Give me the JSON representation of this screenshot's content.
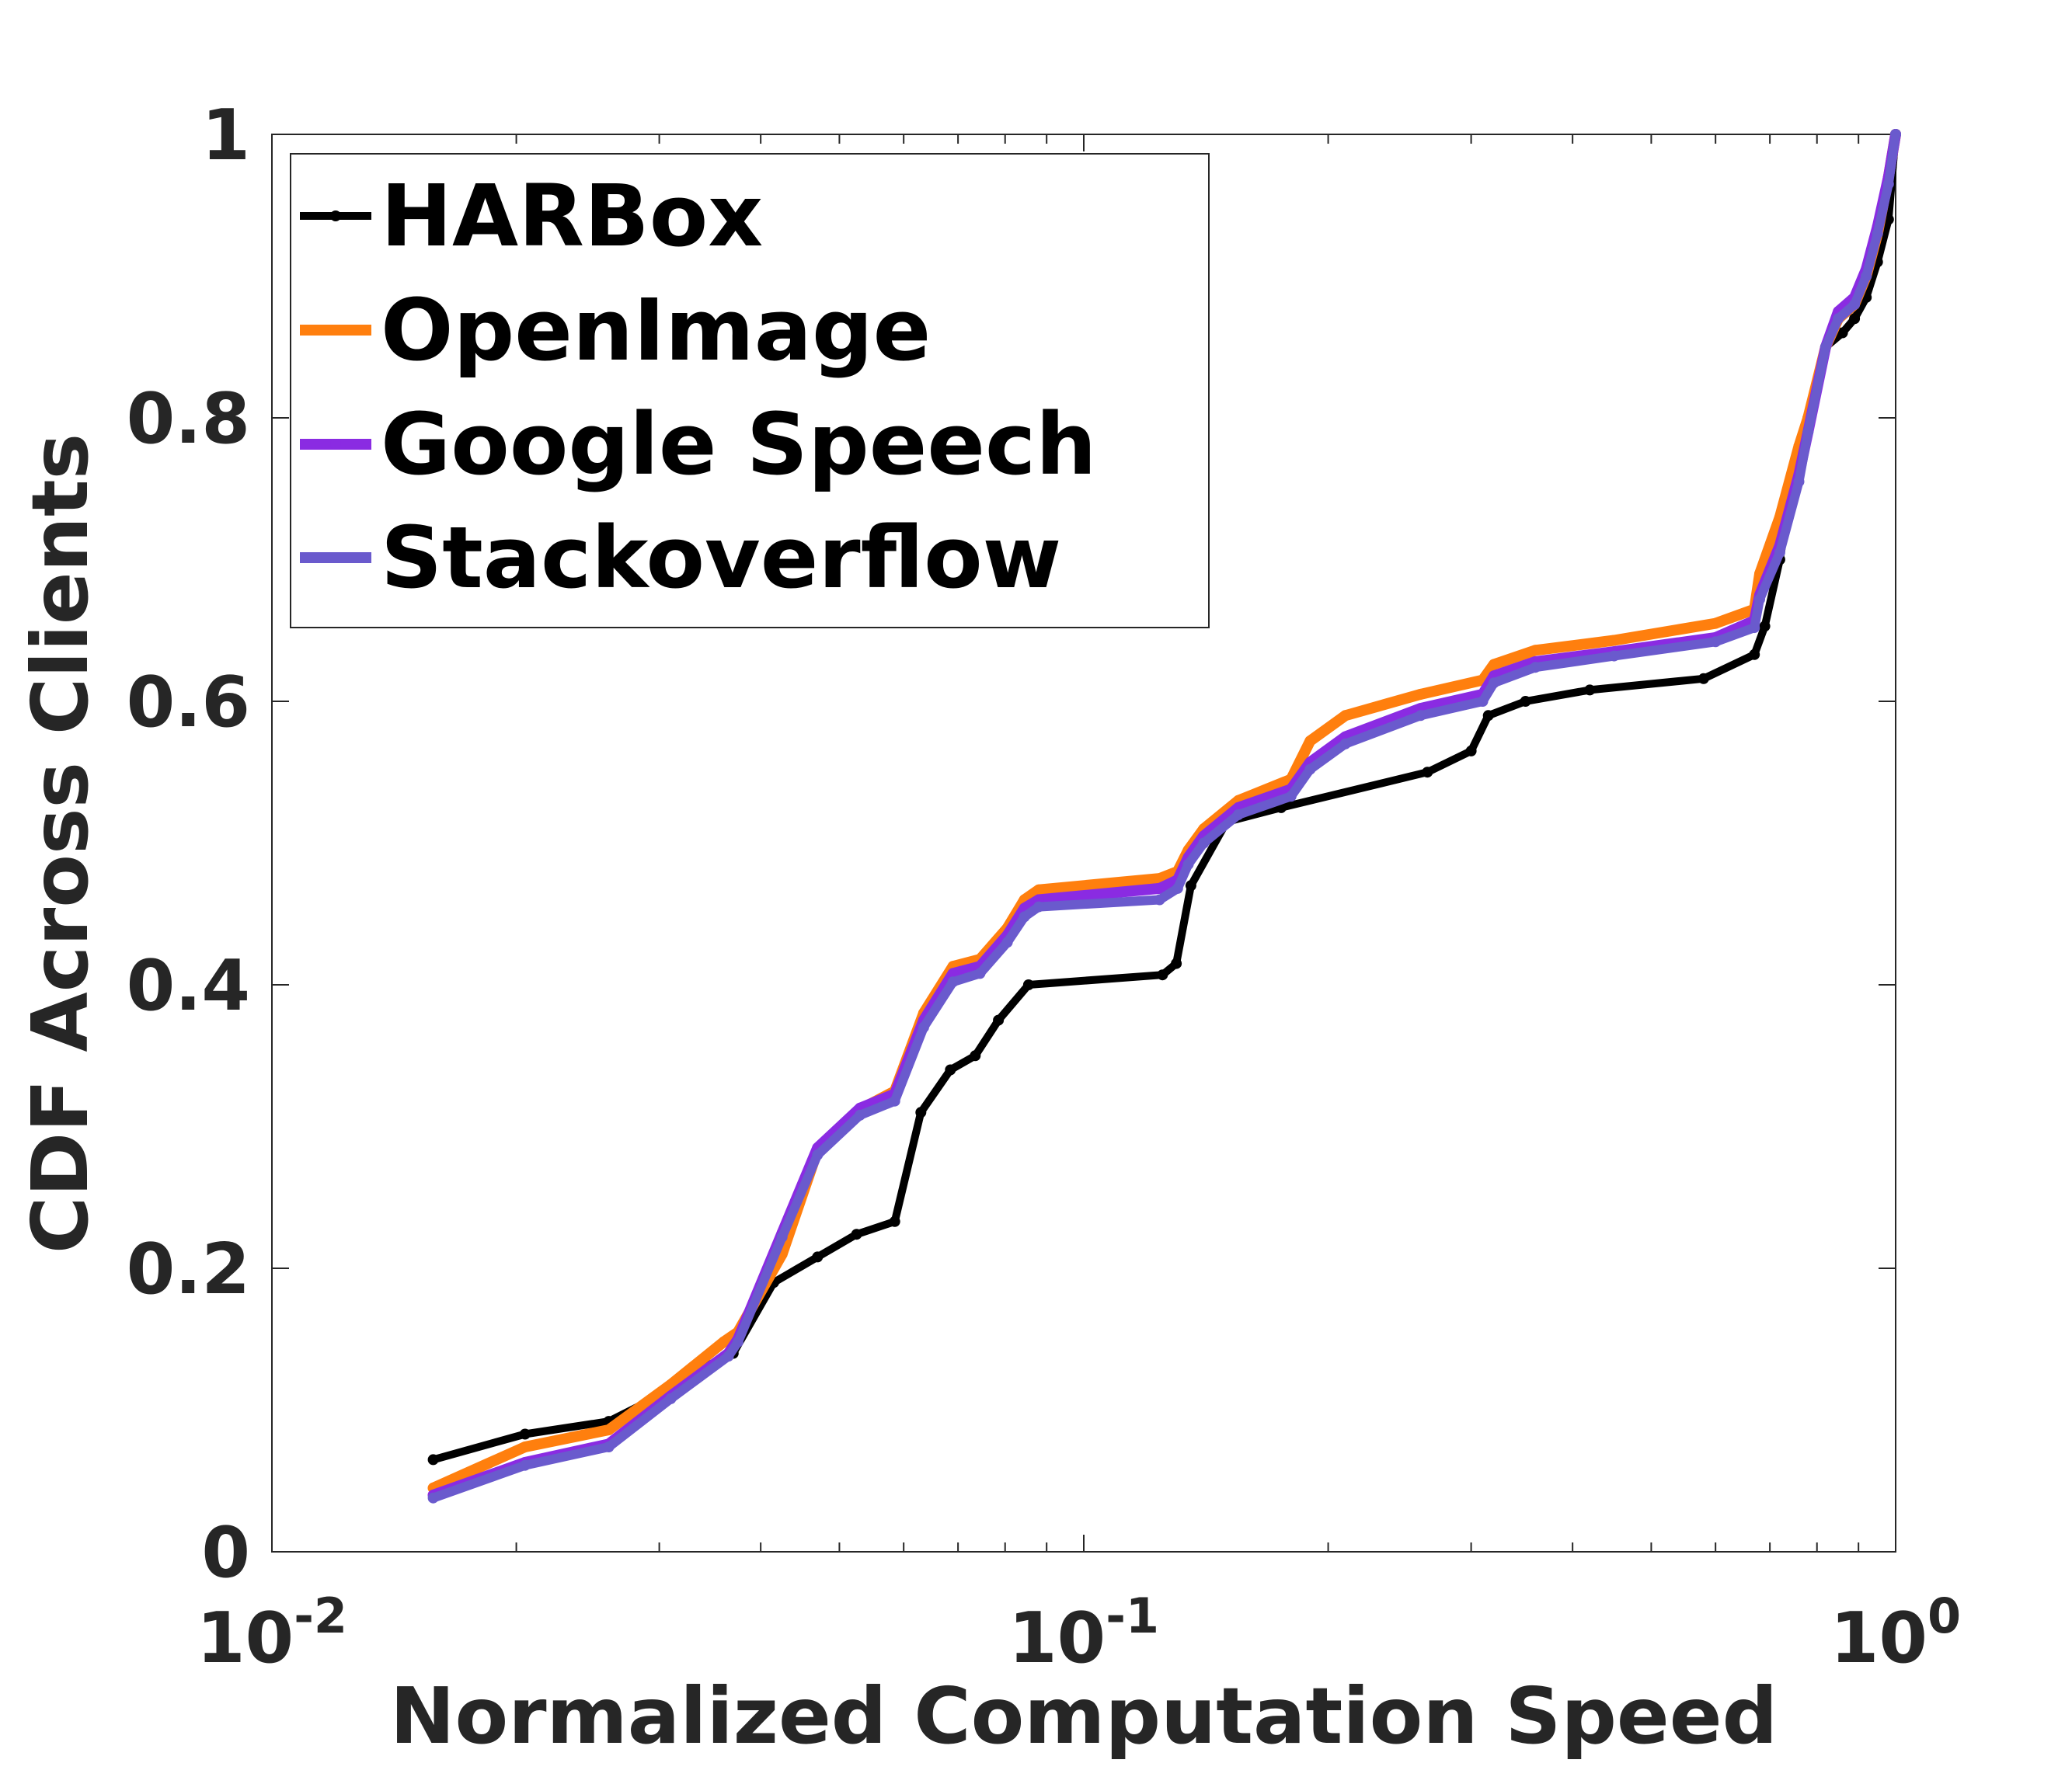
{
  "chart_data": {
    "type": "line",
    "title": "",
    "xlabel": "Normalized Computation Speed",
    "ylabel": "CDF Across Clients",
    "xscale": "log",
    "xlim": [
      0.01,
      1
    ],
    "ylim": [
      0,
      1
    ],
    "x_ticks": [
      {
        "value": 0.01,
        "base": "10",
        "exp": "-2"
      },
      {
        "value": 0.1,
        "base": "10",
        "exp": "-1"
      },
      {
        "value": 1,
        "base": "10",
        "exp": "0"
      }
    ],
    "y_ticks": [
      {
        "value": 0,
        "label": "0"
      },
      {
        "value": 0.2,
        "label": "0.2"
      },
      {
        "value": 0.4,
        "label": "0.4"
      },
      {
        "value": 0.6,
        "label": "0.6"
      },
      {
        "value": 0.8,
        "label": "0.8"
      },
      {
        "value": 1,
        "label": "1"
      }
    ],
    "grid": false,
    "legend_position": "top-left",
    "series": [
      {
        "name": "HARBox",
        "color": "#000000",
        "x": [
          0.0158,
          0.0205,
          0.026,
          0.03,
          0.034,
          0.037,
          0.0415,
          0.047,
          0.0525,
          0.0585,
          0.063,
          0.0685,
          0.0735,
          0.0785,
          0.0855,
          0.125,
          0.13,
          0.1355,
          0.15,
          0.175,
          0.265,
          0.3,
          0.315,
          0.35,
          0.42,
          0.58,
          0.67,
          0.69,
          0.72,
          0.75,
          0.78,
          0.82,
          0.86,
          0.89,
          0.92,
          0.95,
          0.98,
          1.0
        ],
        "y": [
          0.065,
          0.083,
          0.092,
          0.11,
          0.13,
          0.14,
          0.19,
          0.208,
          0.224,
          0.233,
          0.31,
          0.34,
          0.35,
          0.375,
          0.4,
          0.407,
          0.415,
          0.47,
          0.515,
          0.525,
          0.55,
          0.565,
          0.59,
          0.6,
          0.608,
          0.616,
          0.633,
          0.653,
          0.7,
          0.76,
          0.8,
          0.85,
          0.86,
          0.87,
          0.885,
          0.91,
          0.94,
          1.0
        ]
      },
      {
        "name": "OpenImage",
        "color": "#FF7F0E",
        "x": [
          0.0158,
          0.0205,
          0.026,
          0.031,
          0.036,
          0.0375,
          0.0425,
          0.047,
          0.053,
          0.0585,
          0.0635,
          0.069,
          0.0745,
          0.0805,
          0.0845,
          0.088,
          0.124,
          0.1305,
          0.1345,
          0.1405,
          0.155,
          0.18,
          0.19,
          0.21,
          0.26,
          0.31,
          0.32,
          0.36,
          0.45,
          0.6,
          0.67,
          0.68,
          0.72,
          0.76,
          0.78,
          0.82,
          0.85,
          0.89,
          0.92,
          0.95,
          0.98,
          1.0
        ],
        "y": [
          0.045,
          0.074,
          0.086,
          0.118,
          0.148,
          0.155,
          0.21,
          0.283,
          0.312,
          0.325,
          0.38,
          0.413,
          0.418,
          0.44,
          0.46,
          0.467,
          0.475,
          0.48,
          0.495,
          0.51,
          0.53,
          0.545,
          0.572,
          0.59,
          0.605,
          0.615,
          0.626,
          0.636,
          0.643,
          0.655,
          0.665,
          0.69,
          0.73,
          0.78,
          0.8,
          0.85,
          0.87,
          0.88,
          0.9,
          0.93,
          0.97,
          1.0
        ]
      },
      {
        "name": "Google Speech",
        "color": "#8A2BE2",
        "x": [
          0.0158,
          0.0205,
          0.026,
          0.031,
          0.0365,
          0.0375,
          0.0425,
          0.047,
          0.053,
          0.0585,
          0.0635,
          0.069,
          0.0745,
          0.0805,
          0.0845,
          0.088,
          0.124,
          0.1305,
          0.1345,
          0.1405,
          0.155,
          0.18,
          0.19,
          0.21,
          0.26,
          0.31,
          0.32,
          0.36,
          0.45,
          0.6,
          0.67,
          0.68,
          0.72,
          0.76,
          0.78,
          0.82,
          0.85,
          0.89,
          0.92,
          0.95,
          0.98,
          1.0
        ],
        "y": [
          0.04,
          0.063,
          0.076,
          0.11,
          0.14,
          0.15,
          0.225,
          0.285,
          0.313,
          0.323,
          0.375,
          0.408,
          0.413,
          0.435,
          0.454,
          0.46,
          0.468,
          0.474,
          0.49,
          0.505,
          0.525,
          0.538,
          0.557,
          0.575,
          0.595,
          0.605,
          0.618,
          0.628,
          0.635,
          0.645,
          0.657,
          0.675,
          0.71,
          0.76,
          0.79,
          0.85,
          0.875,
          0.885,
          0.905,
          0.935,
          0.97,
          1.0
        ]
      },
      {
        "name": "Stackoverflow",
        "color": "#6A5ACD",
        "x": [
          0.0158,
          0.0205,
          0.026,
          0.031,
          0.0365,
          0.0375,
          0.0425,
          0.047,
          0.053,
          0.0585,
          0.0635,
          0.069,
          0.0745,
          0.0805,
          0.0845,
          0.088,
          0.124,
          0.1305,
          0.1345,
          0.1405,
          0.155,
          0.18,
          0.19,
          0.21,
          0.26,
          0.31,
          0.32,
          0.36,
          0.45,
          0.6,
          0.67,
          0.68,
          0.72,
          0.76,
          0.78,
          0.82,
          0.85,
          0.89,
          0.92,
          0.95,
          0.98,
          1.0
        ],
        "y": [
          0.038,
          0.061,
          0.074,
          0.108,
          0.138,
          0.148,
          0.222,
          0.28,
          0.308,
          0.318,
          0.37,
          0.402,
          0.408,
          0.43,
          0.448,
          0.455,
          0.46,
          0.468,
          0.485,
          0.5,
          0.52,
          0.533,
          0.552,
          0.57,
          0.59,
          0.6,
          0.613,
          0.624,
          0.632,
          0.642,
          0.652,
          0.672,
          0.705,
          0.755,
          0.79,
          0.85,
          0.87,
          0.88,
          0.9,
          0.93,
          0.965,
          1.0
        ]
      }
    ]
  }
}
